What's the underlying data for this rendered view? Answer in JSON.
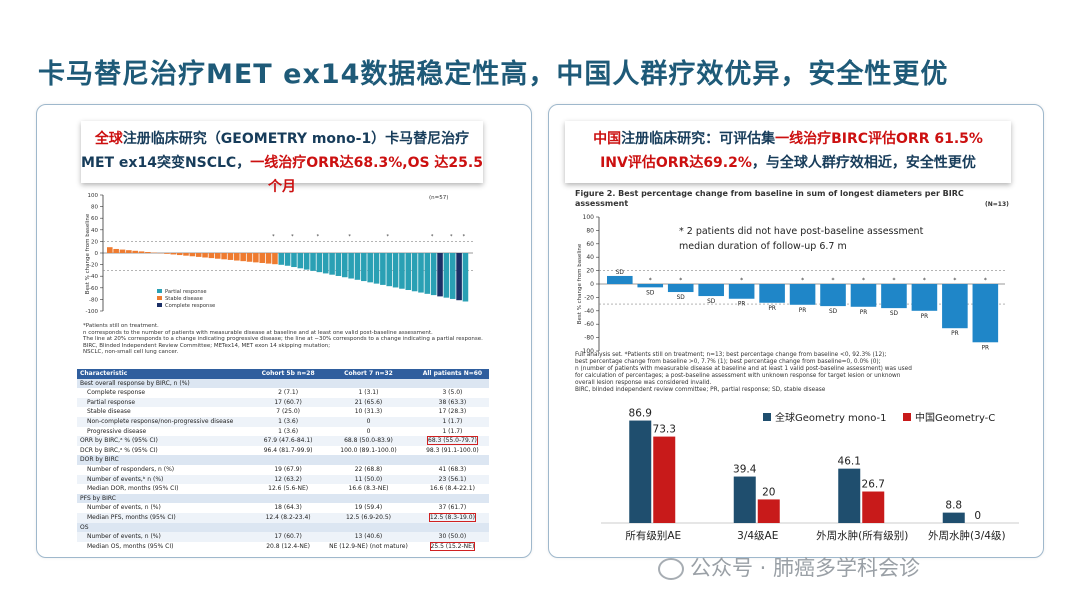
{
  "title": "卡马替尼治疗MET ex14数据稳定性高，中国人群疗效优异，安全性更优",
  "left": {
    "header_line1_red": "全球",
    "header_line1_rest": "注册临床研究（GEOMETRY mono-1）卡马替尼治疗",
    "header_line2_a": "MET ex14突变NSCLC，",
    "header_line2_red": "一线治疗ORR达68.3%,OS 达25.5个月",
    "waterfall": {
      "n_label": "(n=57)",
      "ylabel": "Best % change from baseline",
      "yticks": [
        "100",
        "80",
        "60",
        "40",
        "20",
        "0",
        "-20",
        "-40",
        "-60",
        "-80",
        "-100"
      ],
      "legend": [
        "Partial response",
        "Stable disease",
        "Complete response"
      ],
      "colors": {
        "pr": "#2aa0b4",
        "sd": "#ee7b30",
        "cr": "#1b2f66"
      }
    },
    "footnotes": [
      "*Patients still on treatment.",
      "n corresponds to the number of patients with measurable disease at baseline and at least one valid post-baseline assessment.",
      "The line at 20% corresponds to a change indicating progressive disease; the line at −30% corresponds to a change indicating a partial response.",
      "BIRC, Blinded Independent Review Committee; METex14, MET exon 14 skipping mutation;",
      "NSCLC, non-small cell lung cancer."
    ],
    "table": {
      "headers": [
        "Characteristic",
        "Cohort 5b n=28",
        "Cohort 7 n=32",
        "All patients N=60"
      ],
      "rows": [
        [
          "Best overall response by BIRC, n (%)",
          "",
          "",
          "",
          "sec"
        ],
        [
          "Complete response",
          "2 (7.1)",
          "1 (3.1)",
          "3 (5.0)",
          "ind"
        ],
        [
          "Partial response",
          "17 (60.7)",
          "21 (65.6)",
          "38 (63.3)",
          "ind"
        ],
        [
          "Stable disease",
          "7 (25.0)",
          "10 (31.3)",
          "17 (28.3)",
          "ind"
        ],
        [
          "Non-complete response/non-progressive disease",
          "1 (3.6)",
          "0",
          "1 (1.7)",
          "ind"
        ],
        [
          "Progressive disease",
          "1 (3.6)",
          "0",
          "1 (1.7)",
          "ind"
        ],
        [
          "ORR by BIRC,ᵃ % (95% CI)",
          "67.9 (47.6-84.1)",
          "68.8 (50.0-83.9)",
          "68.3 (55.0-79.7)",
          "box"
        ],
        [
          "DCR by BIRC,ᵃ % (95% CI)",
          "96.4 (81.7-99.9)",
          "100.0 (89.1-100.0)",
          "98.3 (91.1-100.0)",
          ""
        ],
        [
          "DOR by BIRC",
          "",
          "",
          "",
          "sec"
        ],
        [
          "Number of responders, n (%)",
          "19 (67.9)",
          "22 (68.8)",
          "41 (68.3)",
          "ind"
        ],
        [
          "Number of events,ᵇ n (%)",
          "12 (63.2)",
          "11 (50.0)",
          "23 (56.1)",
          "ind"
        ],
        [
          "Median DOR, months (95% CI)",
          "12.6 (5.6-NE)",
          "16.6 (8.3-NE)",
          "16.6 (8.4-22.1)",
          "ind"
        ],
        [
          "PFS by BIRC",
          "",
          "",
          "",
          "sec"
        ],
        [
          "Number of events, n (%)",
          "18 (64.3)",
          "19 (59.4)",
          "37 (61.7)",
          "ind"
        ],
        [
          "Median PFS, months (95% CI)",
          "12.4 (8.2-23.4)",
          "12.5 (6.9-20.5)",
          "12.5 (8.3-19.0)",
          "indbox"
        ],
        [
          "OS",
          "",
          "",
          "",
          "sec"
        ],
        [
          "Number of events, n (%)",
          "17 (60.7)",
          "13 (40.6)",
          "30 (50.0)",
          "ind"
        ],
        [
          "Median OS, months (95% CI)",
          "20.8 (12.4-NE)",
          "NE (12.9-NE) (not mature)",
          "25.5 (15.2-NE)",
          "indbox"
        ]
      ]
    }
  },
  "right": {
    "header_line1_red": "中国",
    "header_line1_rest": "注册临床研究：可评估集",
    "header_line1_red2": "一线治疗BIRC评估ORR 61.5%",
    "header_line2_red": "INV评估ORR达69.2%",
    "header_line2_rest": "，与全球人群疗效相近，安全性更优",
    "fig_title": "Figure 2. Best percentage change from baseline in sum of longest diameters per BIRC assessment",
    "fig_n": "(N=13)",
    "note1": "* 2 patients did not have post-baseline assessment",
    "note2": "median duration of follow-up 6.7 m",
    "waterfall": {
      "ylabel": "Best % change from baseline",
      "yticks": [
        "100",
        "80",
        "60",
        "40",
        "20",
        "0",
        "-20",
        "-40",
        "-60",
        "-80",
        "-100"
      ],
      "values": [
        12,
        -5,
        -12,
        -18,
        -22,
        -28,
        -31,
        -33,
        -34,
        -36,
        -40,
        -66,
        -87
      ],
      "labels": [
        "SD",
        "SD",
        "SD",
        "SD",
        "PR",
        "PR",
        "PR",
        "SD",
        "PR",
        "SD",
        "PR",
        "PR",
        "PR"
      ],
      "star": [
        false,
        true,
        true,
        false,
        true,
        false,
        true,
        true,
        true,
        true,
        true,
        true,
        true
      ]
    },
    "footnote": [
      "Full analysis set. *Patients still on treatment; n=13; best percentage change from baseline <0, 92.3% (12);",
      "best percentage change from baseline >0, 7.7% (1); best percentage change from baseline=0, 0.0% (0);",
      "n (number of patients with measurable disease at baseline and at least 1 valid post-baseline assessment) was used",
      "for calculation of percentages; a post-baseline assessment with unknown response for target lesion or unknown",
      "overall lesion response was considered invalid.",
      "BIRC, blinded independent review committee; PR, partial response; SD, stable disease"
    ]
  },
  "chart_data": [
    {
      "type": "bar",
      "categories": [
        "所有级别AE",
        "3/4级AE",
        "外周水肿(所有级别)",
        "外周水肿(3/4级)"
      ],
      "series": [
        {
          "name": "全球Geometry mono-1",
          "values": [
            86.9,
            39.4,
            46.1,
            8.8
          ],
          "color": "#1f4e6e"
        },
        {
          "name": "中国Geometry-C",
          "values": [
            73.3,
            20,
            26.7,
            0
          ],
          "color": "#c81a1a"
        }
      ],
      "legend_position": "top-right"
    }
  ],
  "watermark": "公众号 · 肺癌多学科会诊"
}
